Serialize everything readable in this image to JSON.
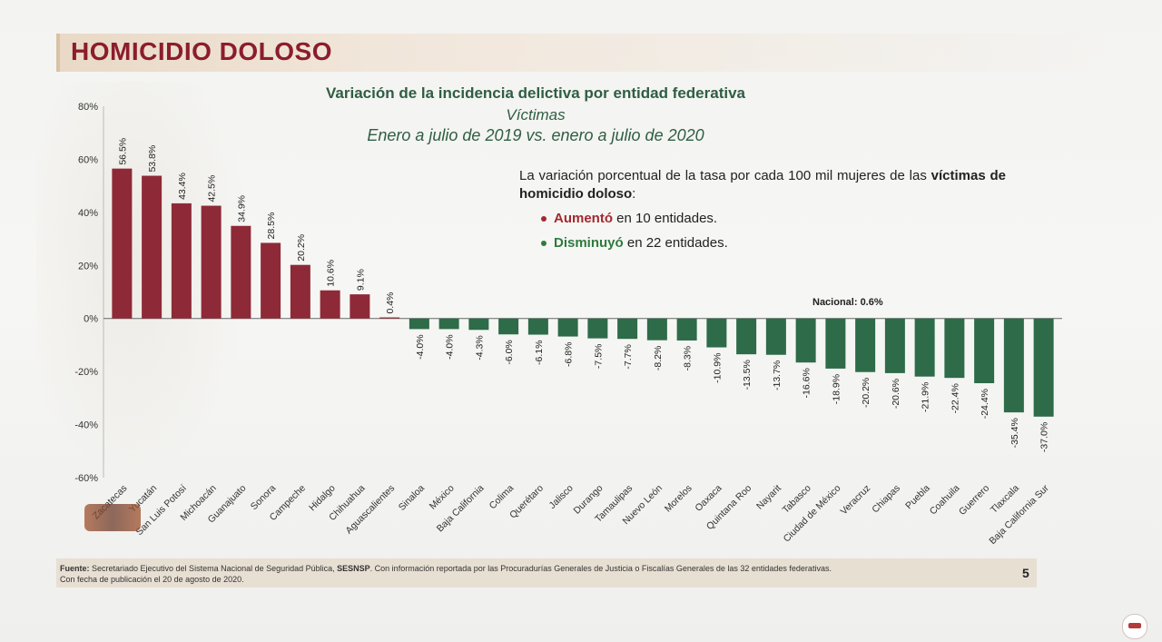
{
  "slide": {
    "title": "HOMICIDIO DOLOSO",
    "subtitle_lines": [
      "Variación de la incidencia delictiva por entidad federativa",
      "Víctimas",
      "Enero a julio de 2019 vs. enero a julio de 2020"
    ],
    "description_plain": "La variación porcentual de la tasa por cada 100 mil mujeres de las ",
    "description_bold": "víctimas de homicidio doloso",
    "description_tail": ":",
    "bullets": [
      {
        "bold": "Aumentó",
        "rest": " en 10 entidades.",
        "color": "#a3282f"
      },
      {
        "bold": "Disminuyó",
        "rest": " en 22 entidades.",
        "color": "#2f7a3f"
      }
    ],
    "national_label": "Nacional: 0.6%",
    "footer_bold1": "Fuente:",
    "footer_text1": " Secretariado Ejecutivo del Sistema Nacional de Seguridad Pública, ",
    "footer_bold2": "SESNSP",
    "footer_text2": ". Con información reportada por las Procuradurías Generales de Justicia o Fiscalías Generales de las 32 entidades federativas.",
    "footer_line2": "Con fecha de publicación el 20 de agosto de 2020.",
    "page_number": "5"
  },
  "chart_data": {
    "type": "bar",
    "title": "",
    "xlabel": "",
    "ylabel": "",
    "ylim": [
      -60,
      80
    ],
    "yticks": [
      80,
      60,
      40,
      20,
      0,
      -20,
      -40,
      -60
    ],
    "ytick_labels": [
      "80%",
      "60%",
      "40%",
      "20%",
      "0%",
      "-20%",
      "-40%",
      "-60%"
    ],
    "positive_color": "#8e2a37",
    "negative_color": "#2e6b49",
    "categories": [
      "Zacatecas",
      "Yucatán",
      "San Luis Potosí",
      "Michoacán",
      "Guanajuato",
      "Sonora",
      "Campeche",
      "Hidalgo",
      "Chihuahua",
      "Aguascalientes",
      "Sinaloa",
      "México",
      "Baja California",
      "Colima",
      "Querétaro",
      "Jalisco",
      "Durango",
      "Tamaulipas",
      "Nuevo León",
      "Morelos",
      "Oaxaca",
      "Quintana Roo",
      "Nayarit",
      "Tabasco",
      "Ciudad de México",
      "Veracruz",
      "Chiapas",
      "Puebla",
      "Coahuila",
      "Guerrero",
      "Tlaxcala",
      "Baja California Sur"
    ],
    "values": [
      56.5,
      53.8,
      43.4,
      42.5,
      34.9,
      28.5,
      20.2,
      10.6,
      9.1,
      0.4,
      -4.0,
      -4.0,
      -4.3,
      -6.0,
      -6.1,
      -6.8,
      -7.5,
      -7.7,
      -8.2,
      -8.3,
      -10.9,
      -13.5,
      -13.7,
      -16.6,
      -18.9,
      -20.2,
      -20.6,
      -21.9,
      -22.4,
      -24.4,
      -35.4,
      -37.0
    ],
    "value_labels": [
      "56.5%",
      "53.8%",
      "43.4%",
      "42.5%",
      "34.9%",
      "28.5%",
      "20.2%",
      "10.6%",
      "9.1%",
      "0.4%",
      "-4.0%",
      "-4.0%",
      "-4.3%",
      "-6.0%",
      "-6.1%",
      "-6.8%",
      "-7.5%",
      "-7.7%",
      "-8.2%",
      "-8.3%",
      "-10.9%",
      "-13.5%",
      "-13.7%",
      "-16.6%",
      "-18.9%",
      "-20.2%",
      "-20.6%",
      "-21.9%",
      "-22.4%",
      "-24.4%",
      "-35.4%",
      "-37.0%"
    ]
  }
}
